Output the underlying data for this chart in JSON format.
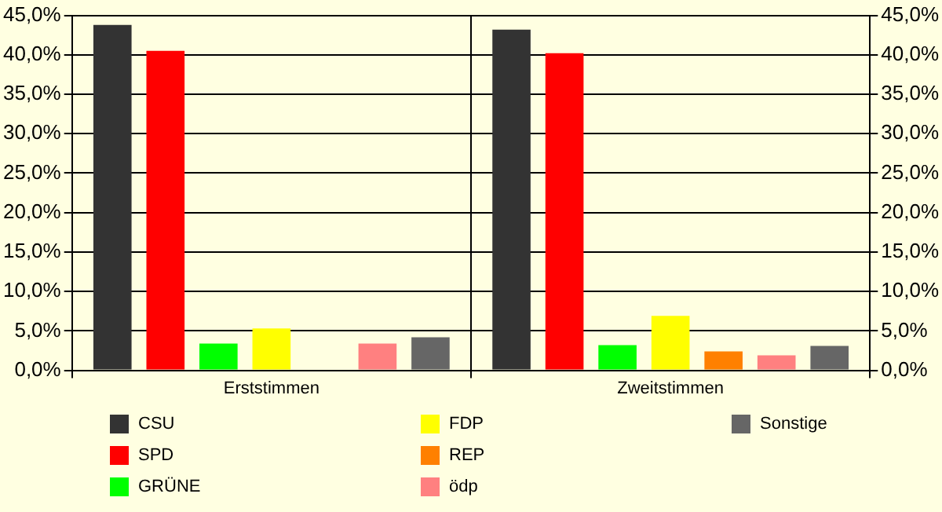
{
  "chart_data": {
    "type": "bar",
    "categories": [
      "Erststimmen",
      "Zweitstimmen"
    ],
    "series": [
      {
        "name": "CSU",
        "color": "#333333",
        "values": [
          43.8,
          43.2
        ]
      },
      {
        "name": "SPD",
        "color": "#ff0000",
        "values": [
          40.5,
          40.2
        ]
      },
      {
        "name": "GRÜNE",
        "color": "#00ff00",
        "values": [
          3.4,
          3.2
        ]
      },
      {
        "name": "FDP",
        "color": "#ffff00",
        "values": [
          5.3,
          6.9
        ]
      },
      {
        "name": "REP",
        "color": "#ff8000",
        "values": [
          null,
          2.4
        ]
      },
      {
        "name": "ödp",
        "color": "#ff8080",
        "values": [
          3.4,
          1.9
        ]
      },
      {
        "name": "Sonstige",
        "color": "#666666",
        "values": [
          4.2,
          3.1
        ]
      }
    ],
    "ylim": [
      0,
      45
    ],
    "yticks": [
      {
        "value": 0,
        "label": "0,0%"
      },
      {
        "value": 5,
        "label": "5,0%"
      },
      {
        "value": 10,
        "label": "10,0%"
      },
      {
        "value": 15,
        "label": "15,0%"
      },
      {
        "value": 20,
        "label": "20,0%"
      },
      {
        "value": 25,
        "label": "25,0%"
      },
      {
        "value": 30,
        "label": "30,0%"
      },
      {
        "value": 35,
        "label": "35,0%"
      },
      {
        "value": 40,
        "label": "40,0%"
      },
      {
        "value": 45,
        "label": "45,0%"
      }
    ],
    "y2lim": [
      0,
      45
    ],
    "y2ticks": [
      {
        "value": 0,
        "label": "0,0%"
      },
      {
        "value": 5,
        "label": "5,0%"
      },
      {
        "value": 10,
        "label": "10,0%"
      },
      {
        "value": 15,
        "label": "15,0%"
      },
      {
        "value": 20,
        "label": "20,0%"
      },
      {
        "value": 25,
        "label": "25,0%"
      },
      {
        "value": 30,
        "label": "30,0%"
      },
      {
        "value": 35,
        "label": "35,0%"
      },
      {
        "value": 40,
        "label": "40,0%"
      },
      {
        "value": 45,
        "label": "45,0%"
      }
    ],
    "grid": true,
    "legend": "bottom"
  }
}
